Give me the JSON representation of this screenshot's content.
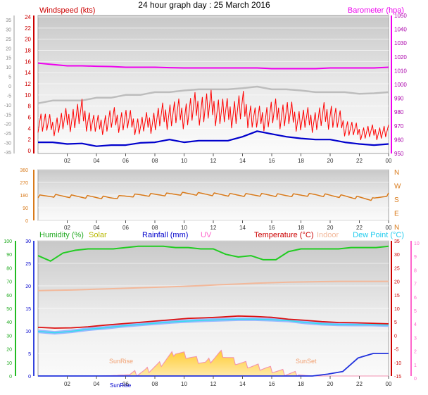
{
  "title": "24 hour graph day : 25 March 2016",
  "time_labels": [
    "02",
    "04",
    "06",
    "08",
    "10",
    "12",
    "14",
    "16",
    "18",
    "20",
    "22",
    "00"
  ],
  "colors": {
    "windspeed": "#ff0000",
    "gust": "#ff0000",
    "avg_wind": "#0000cc",
    "rolling": "#c0c0c0",
    "barometer": "#ee00ee",
    "direction": "#d97a1a",
    "humidity": "#22bb22",
    "solar": "#b8b800",
    "rainfall": "#0000cc",
    "uv": "#ff66cc",
    "temperature": "#cc0000",
    "indoor": "#f2b89a",
    "dewpoint": "#33ddee"
  },
  "chart_data": [
    {
      "type": "line",
      "name": "wind-barometer",
      "legend": {
        "windspeed": "Windspeed (kts)",
        "barometer": "Barometer (hpa)"
      },
      "x_ticks": [
        "02",
        "04",
        "06",
        "08",
        "10",
        "12",
        "14",
        "16",
        "18",
        "20",
        "22",
        "00"
      ],
      "left_ticks_outer": [
        35,
        30,
        25,
        20,
        15,
        10,
        5,
        0,
        -5,
        -10,
        -15,
        -20,
        -25,
        -30,
        -35
      ],
      "left_ticks_inner": [
        24,
        22,
        20,
        18,
        16,
        14,
        12,
        10,
        8,
        6,
        4,
        2,
        0
      ],
      "right_ticks": [
        1050,
        1040,
        1030,
        1020,
        1010,
        1000,
        990,
        980,
        970,
        960,
        950
      ],
      "windspeed_range": [
        0,
        24
      ],
      "barometer_range": [
        950,
        1050
      ],
      "barometer_hpa": [
        1015.5,
        1014.5,
        1013.5,
        1013.5,
        1013.2,
        1013.0,
        1012.5,
        1012.5,
        1012.5,
        1012.2,
        1012.0,
        1012.0,
        1012.0,
        1012.0,
        1012.0,
        1012.0,
        1011.5,
        1011.5,
        1011.5,
        1011.5,
        1012.0,
        1012.0,
        1012.0,
        1012.0,
        1012.5
      ],
      "gust_kts": [
        5,
        4,
        5,
        6,
        4,
        5,
        5,
        4,
        5,
        6,
        6,
        7,
        7,
        6,
        7,
        5,
        6,
        6,
        5,
        5,
        6,
        4,
        3,
        3,
        3
      ],
      "avg_wind_kts": [
        1.5,
        1.5,
        1.2,
        1.3,
        0.8,
        1.0,
        1.0,
        1.4,
        1.5,
        2.0,
        1.5,
        1.8,
        1.8,
        1.8,
        2.5,
        3.5,
        3.0,
        2.5,
        2.2,
        2.0,
        2.0,
        1.5,
        1.2,
        1.0,
        1.2
      ],
      "rolling_kts": [
        8.5,
        9,
        9,
        9,
        9.5,
        9.5,
        10,
        10,
        10.5,
        10.5,
        10.8,
        11,
        11,
        11,
        11.2,
        11.5,
        11,
        11,
        10.8,
        10.5,
        10.5,
        10.5,
        10.2,
        10.3,
        10.5
      ],
      "series": [
        {
          "name": "Barometer (hpa)"
        },
        {
          "name": "Windspeed (kts)"
        }
      ]
    },
    {
      "type": "line",
      "name": "wind-direction",
      "x_ticks": [
        "02",
        "04",
        "06",
        "08",
        "10",
        "12",
        "14",
        "16",
        "18",
        "20",
        "22",
        "00"
      ],
      "left_ticks": [
        360,
        270,
        180,
        90,
        0
      ],
      "compass": [
        "N",
        "W",
        "S",
        "E",
        "N"
      ],
      "y_range": [
        0,
        360
      ],
      "direction_deg": [
        170,
        175,
        172,
        168,
        165,
        160,
        172,
        180,
        182,
        185,
        190,
        188,
        185,
        182,
        180,
        182,
        180,
        178,
        180,
        182,
        176,
        170,
        160,
        150,
        185
      ]
    },
    {
      "type": "line",
      "name": "temp-humidity-rain",
      "legend": {
        "humidity": "Humidity (%)",
        "solar": "Solar",
        "rainfall": "Rainfall (mm)",
        "uv": "UV",
        "temperature": "Temperature (°C)",
        "indoor": "Indoor",
        "dewpoint": "Dew Point (°C)"
      },
      "x_ticks": [
        "02",
        "04",
        "06",
        "08",
        "10",
        "12",
        "14",
        "16",
        "18",
        "20",
        "22",
        "00"
      ],
      "humidity_ticks": [
        100,
        90,
        80,
        70,
        60,
        50,
        40,
        30,
        20,
        10,
        0
      ],
      "rain_ticks": [
        30,
        25,
        20,
        15,
        10,
        5,
        0
      ],
      "temp_ticks": [
        35,
        30,
        25,
        20,
        15,
        10,
        5,
        0,
        -5,
        -10,
        -15
      ],
      "uv_ticks": [
        10,
        9,
        8,
        7,
        6,
        5,
        4,
        3,
        2,
        1,
        0
      ],
      "temp_range": [
        -15,
        35
      ],
      "humidity_range": [
        0,
        100
      ],
      "rain_range": [
        0,
        30
      ],
      "humidity_pct": [
        89,
        85,
        91,
        93,
        94,
        94,
        94,
        95,
        96,
        96,
        96,
        95,
        95,
        94,
        94,
        90,
        88,
        89,
        86,
        86,
        92,
        94,
        94,
        94,
        94,
        95,
        95,
        95,
        96
      ],
      "temperature_c": [
        3,
        2.7,
        2.8,
        3.2,
        3.8,
        4.3,
        4.8,
        5.3,
        5.8,
        6.3,
        6.5,
        6.8,
        7.2,
        7.0,
        6.7,
        6.0,
        5.6,
        5.1,
        4.8,
        4.7,
        4.5,
        4.3
      ],
      "indoor_c": [
        16.6,
        16.7,
        16.8,
        17.0,
        17.2,
        17.4,
        17.6,
        17.8,
        18.0,
        18.2,
        18.5,
        18.8,
        19.0,
        19.3,
        19.5,
        19.7,
        19.8,
        19.9,
        20.0,
        20.0,
        20.0,
        20.0
      ],
      "dewpoint_c": [
        1.5,
        1.0,
        1.5,
        2.3,
        2.8,
        3.5,
        4.0,
        4.5,
        5.0,
        5.3,
        5.6,
        5.8,
        6.0,
        6.0,
        5.8,
        5.5,
        4.8,
        4.3,
        4.1,
        4.0,
        4.0,
        3.8
      ],
      "rainfall_mm": [
        0,
        0,
        0,
        0,
        0,
        0,
        0,
        0,
        0,
        0,
        0,
        0,
        0,
        0,
        0,
        0,
        0,
        0,
        0,
        0.4,
        1.0,
        4.0,
        5.0,
        5.0
      ],
      "solar_rel": [
        0,
        0,
        0,
        0,
        0,
        0.02,
        0.05,
        0.18,
        0.45,
        0.95,
        0.75,
        0.5,
        0.9,
        0.55,
        0.4,
        0.3,
        0.15,
        0.05,
        0,
        0,
        0,
        0,
        0,
        0
      ],
      "solar_markers": {
        "sunrise": "SunRise",
        "sunset": "SunSet",
        "sunrise_time": "SunRise"
      }
    }
  ]
}
